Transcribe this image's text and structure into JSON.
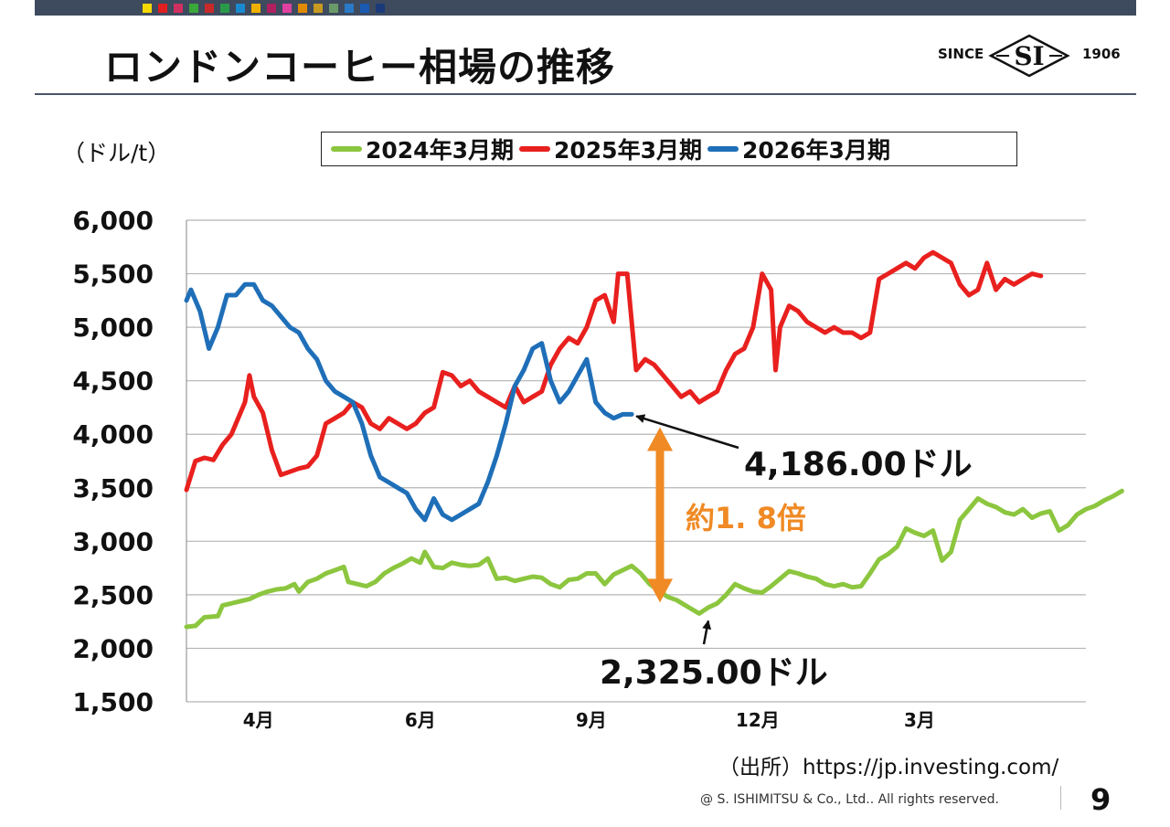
{
  "header": {
    "title": "ロンドンコーヒー相場の推移",
    "logo_since": "SINCE",
    "logo_mark": "SI",
    "logo_year": "1906",
    "swatch_colors": [
      "#f5d800",
      "#e02020",
      "#d03060",
      "#3aa83a",
      "#c82a2a",
      "#2a9a4a",
      "#1a8ad0",
      "#f0b000",
      "#b02060",
      "#e040a0",
      "#e08a00",
      "#c89a20",
      "#6a9a6a",
      "#2a7ac8",
      "#1a5ab0",
      "#1a3a7a"
    ]
  },
  "chart_data": {
    "type": "line",
    "unit_label": "（ドル/t）",
    "ylim": [
      1500,
      6000
    ],
    "yticks": [
      "6,000",
      "5,500",
      "5,000",
      "4,500",
      "4,000",
      "3,500",
      "3,000",
      "2,500",
      "2,000",
      "1,500"
    ],
    "xtick_labels": [
      {
        "label": "4月",
        "x": 16
      },
      {
        "label": "6月",
        "x": 52
      },
      {
        "label": "9月",
        "x": 90
      },
      {
        "label": "12月",
        "x": 127
      },
      {
        "label": "3月",
        "x": 163
      }
    ],
    "x_range": [
      0,
      200
    ],
    "grid": true,
    "series": [
      {
        "name": "2024年3月期",
        "color": "#8cc63f",
        "points": [
          [
            0,
            2200
          ],
          [
            2,
            2210
          ],
          [
            4,
            2290
          ],
          [
            7,
            2300
          ],
          [
            8,
            2400
          ],
          [
            10,
            2420
          ],
          [
            12,
            2440
          ],
          [
            14,
            2460
          ],
          [
            16,
            2500
          ],
          [
            18,
            2530
          ],
          [
            20,
            2550
          ],
          [
            22,
            2560
          ],
          [
            24,
            2600
          ],
          [
            25,
            2530
          ],
          [
            27,
            2620
          ],
          [
            29,
            2650
          ],
          [
            31,
            2700
          ],
          [
            33,
            2730
          ],
          [
            35,
            2760
          ],
          [
            36,
            2620
          ],
          [
            38,
            2600
          ],
          [
            40,
            2580
          ],
          [
            42,
            2620
          ],
          [
            44,
            2700
          ],
          [
            46,
            2750
          ],
          [
            48,
            2790
          ],
          [
            50,
            2840
          ],
          [
            52,
            2800
          ],
          [
            53,
            2900
          ],
          [
            55,
            2760
          ],
          [
            57,
            2750
          ],
          [
            59,
            2800
          ],
          [
            61,
            2780
          ],
          [
            63,
            2770
          ],
          [
            65,
            2780
          ],
          [
            67,
            2840
          ],
          [
            69,
            2650
          ],
          [
            71,
            2660
          ],
          [
            73,
            2630
          ],
          [
            75,
            2650
          ],
          [
            77,
            2670
          ],
          [
            79,
            2660
          ],
          [
            81,
            2600
          ],
          [
            83,
            2570
          ],
          [
            85,
            2640
          ],
          [
            87,
            2650
          ],
          [
            89,
            2700
          ],
          [
            91,
            2700
          ],
          [
            93,
            2600
          ],
          [
            95,
            2690
          ],
          [
            97,
            2730
          ],
          [
            99,
            2770
          ],
          [
            101,
            2700
          ],
          [
            103,
            2600
          ],
          [
            105,
            2540
          ],
          [
            107,
            2480
          ],
          [
            109,
            2450
          ],
          [
            111,
            2400
          ],
          [
            113,
            2350
          ],
          [
            114,
            2325
          ],
          [
            116,
            2380
          ],
          [
            118,
            2420
          ],
          [
            120,
            2500
          ],
          [
            122,
            2600
          ],
          [
            124,
            2560
          ],
          [
            126,
            2530
          ],
          [
            128,
            2520
          ],
          [
            130,
            2580
          ],
          [
            132,
            2650
          ],
          [
            134,
            2720
          ],
          [
            136,
            2700
          ],
          [
            138,
            2670
          ],
          [
            140,
            2650
          ],
          [
            142,
            2600
          ],
          [
            144,
            2580
          ],
          [
            146,
            2600
          ],
          [
            148,
            2570
          ],
          [
            150,
            2580
          ],
          [
            152,
            2700
          ],
          [
            154,
            2830
          ],
          [
            156,
            2880
          ],
          [
            158,
            2950
          ],
          [
            160,
            3120
          ],
          [
            162,
            3080
          ],
          [
            164,
            3050
          ],
          [
            166,
            3100
          ],
          [
            168,
            2820
          ],
          [
            170,
            2900
          ],
          [
            172,
            3200
          ],
          [
            174,
            3300
          ],
          [
            176,
            3400
          ],
          [
            178,
            3350
          ],
          [
            180,
            3320
          ],
          [
            182,
            3270
          ],
          [
            184,
            3250
          ],
          [
            186,
            3300
          ],
          [
            188,
            3220
          ],
          [
            190,
            3260
          ],
          [
            192,
            3280
          ],
          [
            194,
            3100
          ],
          [
            196,
            3150
          ],
          [
            198,
            3250
          ],
          [
            200,
            3300
          ],
          [
            202,
            3330
          ],
          [
            204,
            3380
          ],
          [
            206,
            3420
          ],
          [
            208,
            3470
          ]
        ]
      },
      {
        "name": "2025年3月期",
        "color": "#e8201e",
        "points": [
          [
            0,
            3480
          ],
          [
            2,
            3750
          ],
          [
            4,
            3780
          ],
          [
            6,
            3760
          ],
          [
            8,
            3900
          ],
          [
            10,
            4000
          ],
          [
            11,
            4100
          ],
          [
            13,
            4300
          ],
          [
            14,
            4550
          ],
          [
            15,
            4350
          ],
          [
            17,
            4200
          ],
          [
            19,
            3850
          ],
          [
            21,
            3620
          ],
          [
            23,
            3650
          ],
          [
            25,
            3680
          ],
          [
            27,
            3700
          ],
          [
            29,
            3800
          ],
          [
            31,
            4100
          ],
          [
            33,
            4150
          ],
          [
            35,
            4200
          ],
          [
            37,
            4300
          ],
          [
            39,
            4250
          ],
          [
            41,
            4100
          ],
          [
            43,
            4050
          ],
          [
            45,
            4150
          ],
          [
            47,
            4100
          ],
          [
            49,
            4050
          ],
          [
            51,
            4100
          ],
          [
            53,
            4200
          ],
          [
            55,
            4250
          ],
          [
            57,
            4580
          ],
          [
            59,
            4550
          ],
          [
            61,
            4450
          ],
          [
            63,
            4500
          ],
          [
            65,
            4400
          ],
          [
            67,
            4350
          ],
          [
            69,
            4300
          ],
          [
            71,
            4250
          ],
          [
            73,
            4450
          ],
          [
            75,
            4300
          ],
          [
            77,
            4350
          ],
          [
            79,
            4400
          ],
          [
            81,
            4650
          ],
          [
            83,
            4800
          ],
          [
            85,
            4900
          ],
          [
            87,
            4850
          ],
          [
            89,
            5000
          ],
          [
            91,
            5250
          ],
          [
            93,
            5300
          ],
          [
            95,
            5050
          ],
          [
            96,
            5500
          ],
          [
            98,
            5500
          ],
          [
            100,
            4600
          ],
          [
            102,
            4700
          ],
          [
            104,
            4650
          ],
          [
            106,
            4550
          ],
          [
            108,
            4450
          ],
          [
            110,
            4350
          ],
          [
            112,
            4400
          ],
          [
            114,
            4300
          ],
          [
            116,
            4350
          ],
          [
            118,
            4400
          ],
          [
            120,
            4600
          ],
          [
            122,
            4750
          ],
          [
            124,
            4800
          ],
          [
            126,
            5000
          ],
          [
            128,
            5500
          ],
          [
            130,
            5350
          ],
          [
            131,
            4600
          ],
          [
            132,
            5000
          ],
          [
            134,
            5200
          ],
          [
            136,
            5150
          ],
          [
            138,
            5050
          ],
          [
            140,
            5000
          ],
          [
            142,
            4950
          ],
          [
            144,
            5000
          ],
          [
            146,
            4950
          ],
          [
            148,
            4950
          ],
          [
            150,
            4900
          ],
          [
            152,
            4950
          ],
          [
            154,
            5450
          ],
          [
            156,
            5500
          ],
          [
            158,
            5550
          ],
          [
            160,
            5600
          ],
          [
            162,
            5550
          ],
          [
            164,
            5650
          ],
          [
            166,
            5700
          ],
          [
            168,
            5650
          ],
          [
            170,
            5600
          ],
          [
            172,
            5400
          ],
          [
            174,
            5300
          ],
          [
            176,
            5350
          ],
          [
            178,
            5600
          ],
          [
            180,
            5350
          ],
          [
            182,
            5450
          ],
          [
            184,
            5400
          ],
          [
            186,
            5450
          ],
          [
            188,
            5500
          ],
          [
            190,
            5480
          ]
        ]
      },
      {
        "name": "2026年3月期",
        "color": "#1f6fb8",
        "points": [
          [
            0,
            5250
          ],
          [
            1,
            5350
          ],
          [
            3,
            5150
          ],
          [
            5,
            4800
          ],
          [
            7,
            5000
          ],
          [
            9,
            5300
          ],
          [
            11,
            5300
          ],
          [
            13,
            5400
          ],
          [
            15,
            5400
          ],
          [
            17,
            5250
          ],
          [
            19,
            5200
          ],
          [
            21,
            5100
          ],
          [
            23,
            5000
          ],
          [
            25,
            4950
          ],
          [
            27,
            4800
          ],
          [
            29,
            4700
          ],
          [
            31,
            4500
          ],
          [
            33,
            4400
          ],
          [
            35,
            4350
          ],
          [
            37,
            4300
          ],
          [
            39,
            4100
          ],
          [
            41,
            3800
          ],
          [
            43,
            3600
          ],
          [
            45,
            3550
          ],
          [
            47,
            3500
          ],
          [
            49,
            3450
          ],
          [
            51,
            3300
          ],
          [
            53,
            3200
          ],
          [
            55,
            3400
          ],
          [
            57,
            3250
          ],
          [
            59,
            3200
          ],
          [
            61,
            3250
          ],
          [
            63,
            3300
          ],
          [
            65,
            3350
          ],
          [
            67,
            3550
          ],
          [
            69,
            3800
          ],
          [
            71,
            4100
          ],
          [
            73,
            4450
          ],
          [
            75,
            4600
          ],
          [
            77,
            4800
          ],
          [
            79,
            4850
          ],
          [
            81,
            4500
          ],
          [
            83,
            4300
          ],
          [
            85,
            4400
          ],
          [
            87,
            4550
          ],
          [
            89,
            4700
          ],
          [
            91,
            4300
          ],
          [
            93,
            4200
          ],
          [
            95,
            4150
          ],
          [
            97,
            4186
          ],
          [
            99,
            4186
          ]
        ]
      }
    ],
    "annotations": {
      "blue_value": "4,186.00ドル",
      "green_value": "2,325.00ドル",
      "ratio": "約1. 8倍",
      "blue_point": [
        98,
        4186
      ],
      "green_point": [
        114,
        2325
      ]
    }
  },
  "footer": {
    "source": "（出所）https://jp.investing.com/",
    "copyright": "@ S. ISHIMITSU & Co., Ltd.. All rights reserved.",
    "page_number": "9"
  }
}
